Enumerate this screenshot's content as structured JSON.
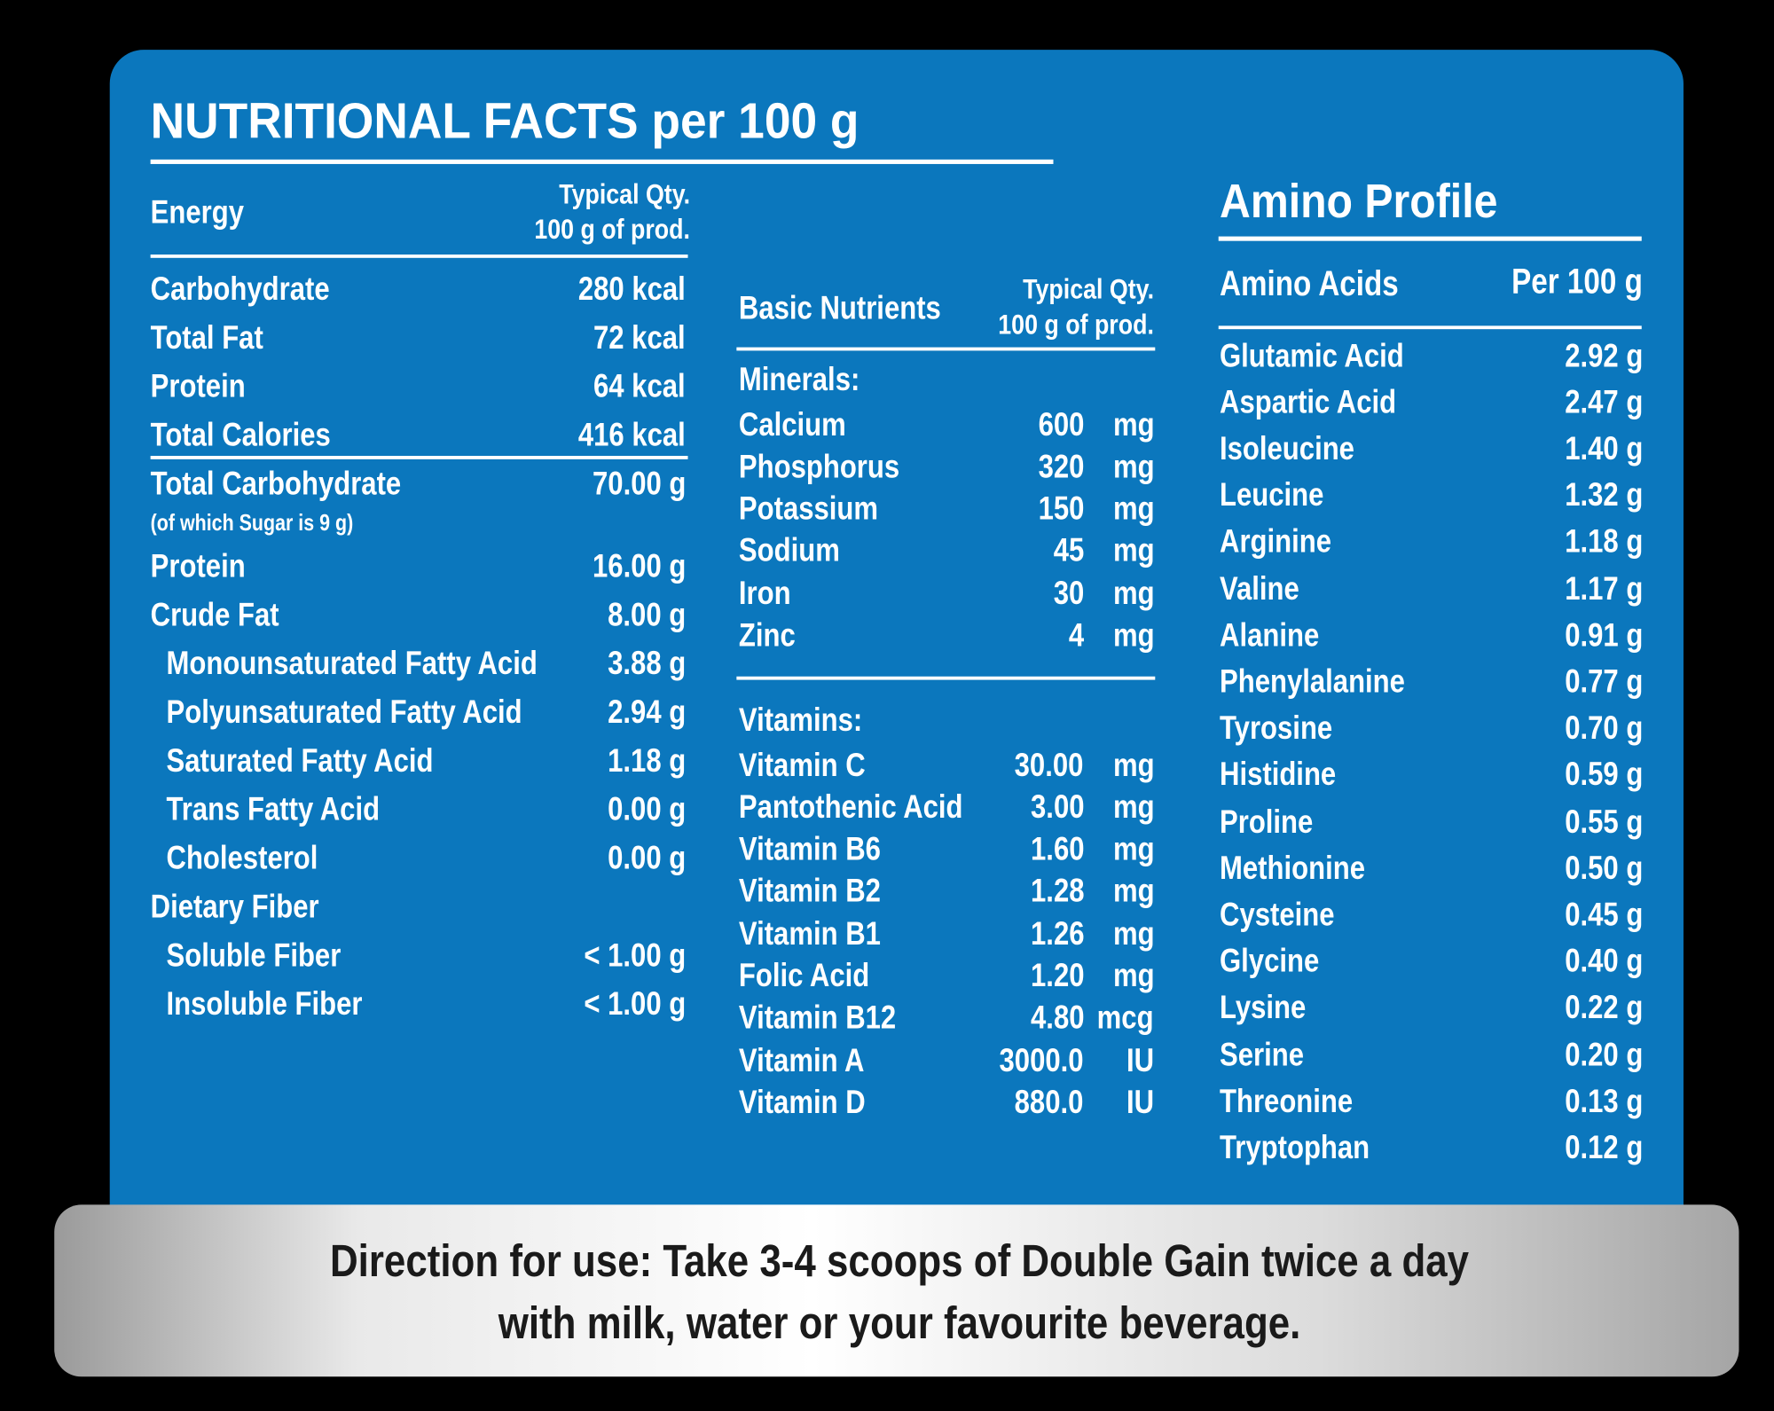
{
  "title": "NUTRITIONAL FACTS per 100 g",
  "energy": {
    "header": {
      "label": "Energy",
      "qty_line1": "Typical Qty.",
      "qty_line2": "100 g of prod."
    },
    "rows": [
      {
        "label": "Carbohydrate",
        "value": "280 kcal"
      },
      {
        "label": "Total Fat",
        "value": "72 kcal"
      },
      {
        "label": "Protein",
        "value": "64 kcal"
      },
      {
        "label": "Total Calories",
        "value": "416 kcal"
      }
    ]
  },
  "macros": {
    "rows": [
      {
        "label": "Total Carbohydrate",
        "value": "70.00 g",
        "note": "(of which Sugar is 9 g)"
      },
      {
        "label": "Protein",
        "value": "16.00 g"
      },
      {
        "label": "Crude Fat",
        "value": "8.00 g",
        "items": [
          {
            "label": "Monounsaturated Fatty Acid",
            "value": "3.88 g"
          },
          {
            "label": "Polyunsaturated Fatty Acid",
            "value": "2.94 g"
          },
          {
            "label": "Saturated Fatty Acid",
            "value": "1.18 g"
          },
          {
            "label": "Trans Fatty Acid",
            "value": "0.00 g"
          },
          {
            "label": "Cholesterol",
            "value": "0.00 g"
          }
        ]
      },
      {
        "label": "Dietary Fiber",
        "items": [
          {
            "label": "Soluble Fiber",
            "value": "< 1.00 g"
          },
          {
            "label": "Insoluble Fiber",
            "value": "< 1.00 g"
          }
        ]
      }
    ]
  },
  "basic": {
    "header": {
      "label": "Basic Nutrients",
      "qty_line1": "Typical Qty.",
      "qty_line2": "100 g of prod."
    },
    "minerals": {
      "heading": "Minerals:",
      "rows": [
        {
          "label": "Calcium",
          "amount": "600",
          "unit": "mg"
        },
        {
          "label": "Phosphorus",
          "amount": "320",
          "unit": "mg"
        },
        {
          "label": "Potassium",
          "amount": "150",
          "unit": "mg"
        },
        {
          "label": "Sodium",
          "amount": "45",
          "unit": "mg"
        },
        {
          "label": "Iron",
          "amount": "30",
          "unit": "mg"
        },
        {
          "label": "Zinc",
          "amount": "4",
          "unit": "mg"
        }
      ]
    },
    "vitamins": {
      "heading": "Vitamins:",
      "rows": [
        {
          "label": "Vitamin C",
          "amount": "30.00",
          "unit": "mg"
        },
        {
          "label": "Pantothenic Acid",
          "amount": "3.00",
          "unit": "mg"
        },
        {
          "label": "Vitamin B6",
          "amount": "1.60",
          "unit": "mg"
        },
        {
          "label": "Vitamin B2",
          "amount": "1.28",
          "unit": "mg"
        },
        {
          "label": "Vitamin B1",
          "amount": "1.26",
          "unit": "mg"
        },
        {
          "label": "Folic Acid",
          "amount": "1.20",
          "unit": "mg"
        },
        {
          "label": "Vitamin B12",
          "amount": "4.80",
          "unit": "mcg"
        },
        {
          "label": "Vitamin A",
          "amount": "3000.0",
          "unit": "IU"
        },
        {
          "label": "Vitamin D",
          "amount": "880.0",
          "unit": "IU"
        }
      ]
    }
  },
  "amino": {
    "title": "Amino Profile",
    "header": {
      "label": "Amino Acids",
      "value": "Per 100 g"
    },
    "rows": [
      {
        "label": "Glutamic Acid",
        "value": "2.92 g"
      },
      {
        "label": "Aspartic Acid",
        "value": "2.47 g"
      },
      {
        "label": "Isoleucine",
        "value": "1.40 g"
      },
      {
        "label": "Leucine",
        "value": "1.32 g"
      },
      {
        "label": "Arginine",
        "value": "1.18 g"
      },
      {
        "label": "Valine",
        "value": "1.17 g"
      },
      {
        "label": "Alanine",
        "value": "0.91 g"
      },
      {
        "label": "Phenylalanine",
        "value": "0.77 g"
      },
      {
        "label": "Tyrosine",
        "value": "0.70 g"
      },
      {
        "label": "Histidine",
        "value": "0.59 g"
      },
      {
        "label": "Proline",
        "value": "0.55 g"
      },
      {
        "label": "Methionine",
        "value": "0.50 g"
      },
      {
        "label": "Cysteine",
        "value": "0.45 g"
      },
      {
        "label": "Glycine",
        "value": "0.40 g"
      },
      {
        "label": "Lysine",
        "value": "0.22 g"
      },
      {
        "label": "Serine",
        "value": "0.20 g"
      },
      {
        "label": "Threonine",
        "value": "0.13 g"
      },
      {
        "label": "Tryptophan",
        "value": "0.12 g"
      }
    ]
  },
  "direction": {
    "line1": "Direction for use: Take 3-4 scoops of Double Gain twice a day",
    "line2": "with milk, water or your favourite beverage."
  }
}
